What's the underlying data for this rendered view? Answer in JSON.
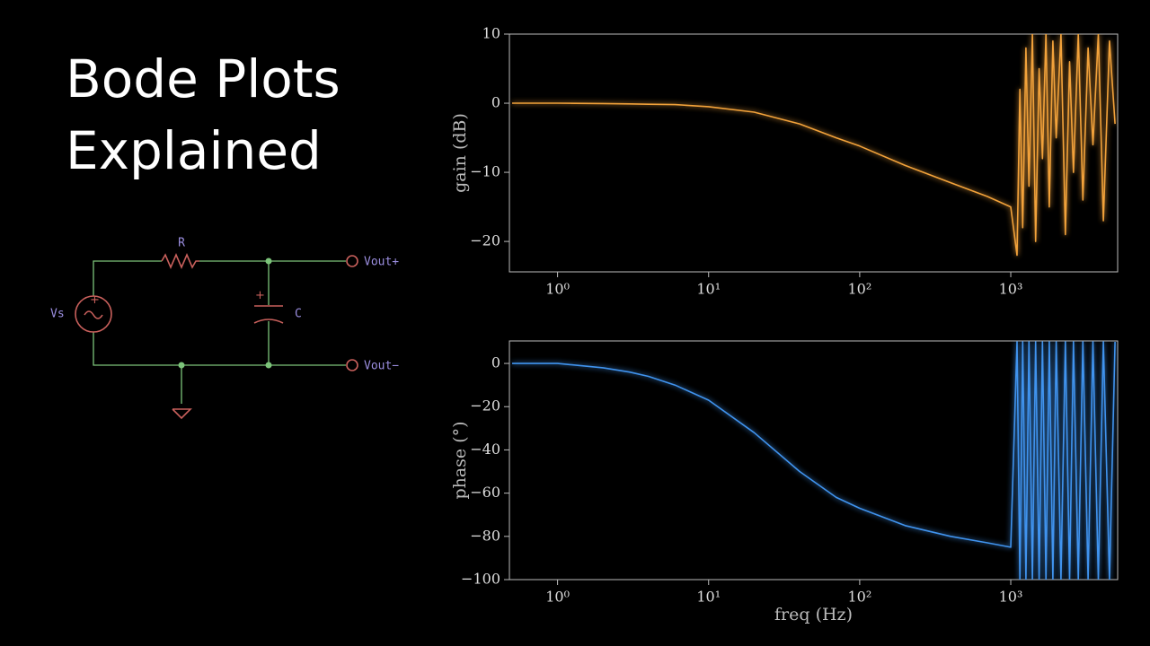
{
  "title": {
    "lines": [
      "Bode Plots",
      "Explained"
    ]
  },
  "circuit": {
    "labels": {
      "resistor": "R",
      "capacitor": "C",
      "source": "Vs",
      "out_plus": "Vout+",
      "out_minus": "Vout−"
    }
  },
  "chart_data": [
    {
      "type": "line",
      "ylabel": "gain (dB)",
      "color": "#f2a23a",
      "log_x": true,
      "xlim": [
        0.48,
        5100
      ],
      "ylim": [
        -24.4,
        10
      ],
      "xticks": [
        {
          "value": 1,
          "label": "10⁰"
        },
        {
          "value": 10,
          "label": "10¹"
        },
        {
          "value": 100,
          "label": "10²"
        },
        {
          "value": 1000,
          "label": "10³"
        }
      ],
      "yticks": [
        {
          "value": -20,
          "label": "−20"
        },
        {
          "value": -10,
          "label": "−10"
        },
        0,
        10
      ],
      "x": [
        0.5,
        1,
        2,
        3,
        4,
        6,
        10,
        20,
        40,
        70,
        100,
        200,
        400,
        700,
        1000,
        1100,
        1150,
        1200,
        1260,
        1320,
        1390,
        1460,
        1540,
        1620,
        1710,
        1800,
        1900,
        2000,
        2150,
        2300,
        2450,
        2600,
        2800,
        3000,
        3250,
        3500,
        3800,
        4100,
        4500,
        4900
      ],
      "values": [
        0,
        0,
        -0.05,
        -0.1,
        -0.15,
        -0.2,
        -0.5,
        -1.3,
        -3,
        -5,
        -6.2,
        -9,
        -11.5,
        -13.5,
        -15,
        -22,
        2,
        -18,
        8,
        -12,
        10,
        -20,
        5,
        -8,
        10,
        -15,
        9,
        -5,
        10,
        -19,
        6,
        -10,
        10,
        -14,
        8,
        -6,
        10,
        -17,
        9,
        -3
      ]
    },
    {
      "type": "line",
      "ylabel": "phase (°)",
      "xlabel": "freq (Hz)",
      "color": "#3f93ee",
      "log_x": true,
      "xlim": [
        0.48,
        5100
      ],
      "ylim": [
        -100,
        10.4
      ],
      "xticks": [
        {
          "value": 1,
          "label": "10⁰"
        },
        {
          "value": 10,
          "label": "10¹"
        },
        {
          "value": 100,
          "label": "10²"
        },
        {
          "value": 1000,
          "label": "10³"
        }
      ],
      "yticks": [
        {
          "value": -100,
          "label": "−100"
        },
        {
          "value": -80,
          "label": "−80"
        },
        {
          "value": -60,
          "label": "−60"
        },
        {
          "value": -40,
          "label": "−40"
        },
        {
          "value": -20,
          "label": "−20"
        },
        0
      ],
      "x": [
        0.5,
        1,
        2,
        3,
        4,
        6,
        10,
        20,
        40,
        70,
        100,
        200,
        400,
        700,
        1000,
        1100,
        1150,
        1200,
        1260,
        1320,
        1390,
        1460,
        1540,
        1620,
        1710,
        1800,
        1900,
        2000,
        2150,
        2300,
        2450,
        2600,
        2800,
        3000,
        3250,
        3500,
        3800,
        4100,
        4500,
        4900
      ],
      "values": [
        0,
        0,
        -2,
        -4,
        -6,
        -10,
        -17,
        -32,
        -50,
        -62,
        -67,
        -75,
        -80,
        -83,
        -85,
        10,
        -100,
        10,
        -100,
        10,
        -100,
        10,
        -100,
        10,
        -100,
        10,
        -100,
        10,
        -100,
        10,
        -100,
        10,
        -100,
        10,
        -100,
        10,
        -100,
        10,
        -100,
        10
      ]
    }
  ]
}
